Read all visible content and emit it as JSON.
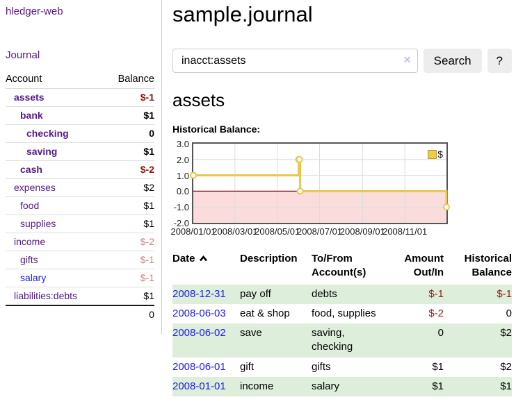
{
  "app": {
    "title": "hledger-web",
    "nav_journal": "Journal"
  },
  "sidebar": {
    "headers": {
      "account": "Account",
      "balance": "Balance"
    },
    "accounts": [
      {
        "name": "assets",
        "indent": 1,
        "bold": true,
        "link_color": "purple",
        "balance": "$-1",
        "balance_class": "neg"
      },
      {
        "name": "bank",
        "indent": 2,
        "bold": true,
        "link_color": "purple",
        "balance": "$1",
        "balance_class": ""
      },
      {
        "name": "checking",
        "indent": 3,
        "bold": true,
        "link_color": "purple",
        "balance": "0",
        "balance_class": ""
      },
      {
        "name": "saving",
        "indent": 3,
        "bold": true,
        "link_color": "purple",
        "balance": "$1",
        "balance_class": ""
      },
      {
        "name": "cash",
        "indent": 2,
        "bold": true,
        "link_color": "purple",
        "balance": "$-2",
        "balance_class": "neg"
      },
      {
        "name": "expenses",
        "indent": 1,
        "bold": false,
        "link_color": "purple",
        "balance": "$2",
        "balance_class": ""
      },
      {
        "name": "food",
        "indent": 2,
        "bold": false,
        "link_color": "purple",
        "balance": "$1",
        "balance_class": ""
      },
      {
        "name": "supplies",
        "indent": 2,
        "bold": false,
        "link_color": "purple",
        "balance": "$1",
        "balance_class": ""
      },
      {
        "name": "income",
        "indent": 1,
        "bold": false,
        "link_color": "purple",
        "balance": "$-2",
        "balance_class": "neg-soft"
      },
      {
        "name": "gifts",
        "indent": 2,
        "bold": false,
        "link_color": "purple",
        "balance": "$-1",
        "balance_class": "neg-soft"
      },
      {
        "name": "salary",
        "indent": 2,
        "bold": false,
        "link_color": "blue",
        "balance": "$-1",
        "balance_class": "neg-soft"
      },
      {
        "name": "liabilities:debts",
        "indent": 1,
        "bold": false,
        "link_color": "purple",
        "balance": "$1",
        "balance_class": ""
      }
    ],
    "total": "0"
  },
  "main": {
    "title": "sample.journal",
    "search": {
      "value": "inacct:assets",
      "clear_label": "✕",
      "button": "Search",
      "help": "?"
    },
    "account_heading": "assets",
    "chart_label": "Historical Balance:"
  },
  "chart_data": {
    "type": "line",
    "title": "Historical Balance",
    "step": true,
    "series": [
      {
        "name": "$",
        "color": "#E9C64D",
        "points": [
          {
            "date": "2008-01-01",
            "value": 1
          },
          {
            "date": "2008-06-01",
            "value": 2
          },
          {
            "date": "2008-06-02",
            "value": 2
          },
          {
            "date": "2008-06-03",
            "value": 0
          },
          {
            "date": "2008-12-31",
            "value": -1
          }
        ]
      }
    ],
    "ylim": [
      -2,
      3
    ],
    "y_ticks": [
      3,
      2,
      1,
      0,
      -1,
      -2
    ],
    "x_ticks": [
      "2008/01/01",
      "2008/03/01",
      "2008/05/01",
      "2008/07/01",
      "2008/09/01",
      "2008/11/01"
    ],
    "x_range": [
      "2008-01-01",
      "2008-12-31"
    ],
    "grid": true,
    "legend": {
      "label": "$",
      "position": "top-right"
    },
    "colors": {
      "grid": "#dcdcdc",
      "zero_line": "#7a1010",
      "negative_region": "#FBDCDC",
      "border": "#555555"
    }
  },
  "transactions": {
    "sort_indicator": "ascending",
    "headers": {
      "date": "Date",
      "description": "Description",
      "accounts": "To/From Account(s)",
      "amount": "Amount Out/In",
      "balance": "Historical Balance"
    },
    "rows": [
      {
        "date": "2008-12-31",
        "description": "pay off",
        "accounts": "debts",
        "amount": "$-1",
        "amount_negative": true,
        "balance": "$-1",
        "balance_negative": true
      },
      {
        "date": "2008-06-03",
        "description": "eat & shop",
        "accounts": "food, supplies",
        "amount": "$-2",
        "amount_negative": true,
        "balance": "0",
        "balance_negative": false
      },
      {
        "date": "2008-06-02",
        "description": "save",
        "accounts": "saving, checking",
        "amount": "0",
        "amount_negative": false,
        "balance": "$2",
        "balance_negative": false
      },
      {
        "date": "2008-06-01",
        "description": "gift",
        "accounts": "gifts",
        "amount": "$1",
        "amount_negative": false,
        "balance": "$2",
        "balance_negative": false
      },
      {
        "date": "2008-01-01",
        "description": "income",
        "accounts": "salary",
        "amount": "$1",
        "amount_negative": false,
        "balance": "$1",
        "balance_negative": false
      }
    ]
  }
}
